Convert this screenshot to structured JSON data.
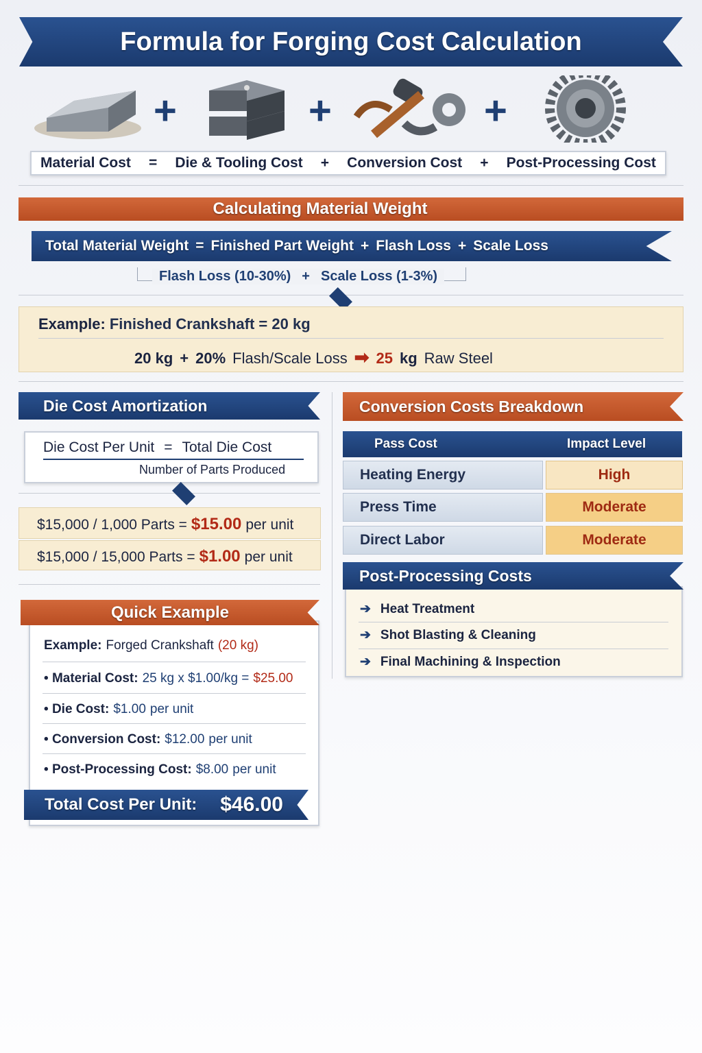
{
  "title": "Formula for Forging Cost Calculation",
  "icons": [
    "steel-bar-icon",
    "forging-die-icon",
    "hammer-tongs-gear-icon",
    "gear-icon"
  ],
  "formula": {
    "material": "Material Cost",
    "eq": "=",
    "die": "Die & Tooling Cost",
    "plus": "+",
    "conversion": "Conversion Cost",
    "post": "Post-Processing Cost"
  },
  "weight": {
    "heading": "Calculating Material Weight",
    "formula": {
      "total": "Total Material Weight",
      "eq": "=",
      "finished": "Finished Part Weight",
      "plus": "+",
      "flash": "Flash Loss",
      "scale": "Scale Loss"
    },
    "sub": {
      "flash": "Flash Loss (10-30%)",
      "plus": "+",
      "scale": "Scale Loss (1-3%)"
    },
    "example": {
      "label": "Example:",
      "text": "Finished Crankshaft = 20 kg",
      "kg": "20 kg",
      "plus": "+",
      "loss_pct": "20%",
      "loss": "Flash/Scale Loss",
      "result_num": "25",
      "result_unit": "kg",
      "result_text": "Raw Steel"
    }
  },
  "die": {
    "heading": "Die Cost Amortization",
    "lhs": "Die Cost Per Unit",
    "eq": "=",
    "numerator": "Total Die Cost",
    "denominator": "Number of Parts Produced",
    "rows": [
      {
        "calc": "$15,000 / 1,000 Parts =",
        "value": "$15.00",
        "unit": "per unit"
      },
      {
        "calc": "$15,000 / 15,000 Parts =",
        "value": "$1.00",
        "unit": "per unit"
      }
    ]
  },
  "quick": {
    "heading": "Quick Example",
    "example_label": "Example:",
    "example_text": "Forged Crankshaft",
    "example_weight": "(20 kg)",
    "items": [
      {
        "label": "Material Cost:",
        "value": "25 kg x $1.00/kg =",
        "extra": "$25.00"
      },
      {
        "label": "Die Cost:",
        "value": "$1.00",
        "extra": "per unit"
      },
      {
        "label": "Conversion Cost:",
        "value": "$12.00",
        "extra": "per unit"
      },
      {
        "label": "Post-Processing Cost:",
        "value": "$8.00",
        "extra": "per unit"
      }
    ],
    "total_label": "Total Cost Per Unit:",
    "total_value": "$46.00"
  },
  "conversion": {
    "heading": "Conversion Costs Breakdown",
    "columns": [
      "Pass Cost",
      "Impact Level"
    ],
    "rows": [
      {
        "name": "Heating Energy",
        "impact": "High"
      },
      {
        "name": "Press Time",
        "impact": "Moderate"
      },
      {
        "name": "Direct Labor",
        "impact": "Moderate"
      }
    ]
  },
  "post": {
    "heading": "Post-Processing Costs",
    "items": [
      "Heat Treatment",
      "Shot Blasting & Cleaning",
      "Final Machining & Inspection"
    ]
  },
  "colors": {
    "navy": "#1f3f73",
    "orange": "#c8582a",
    "cream": "#f8edd3",
    "red": "#b22a17"
  }
}
